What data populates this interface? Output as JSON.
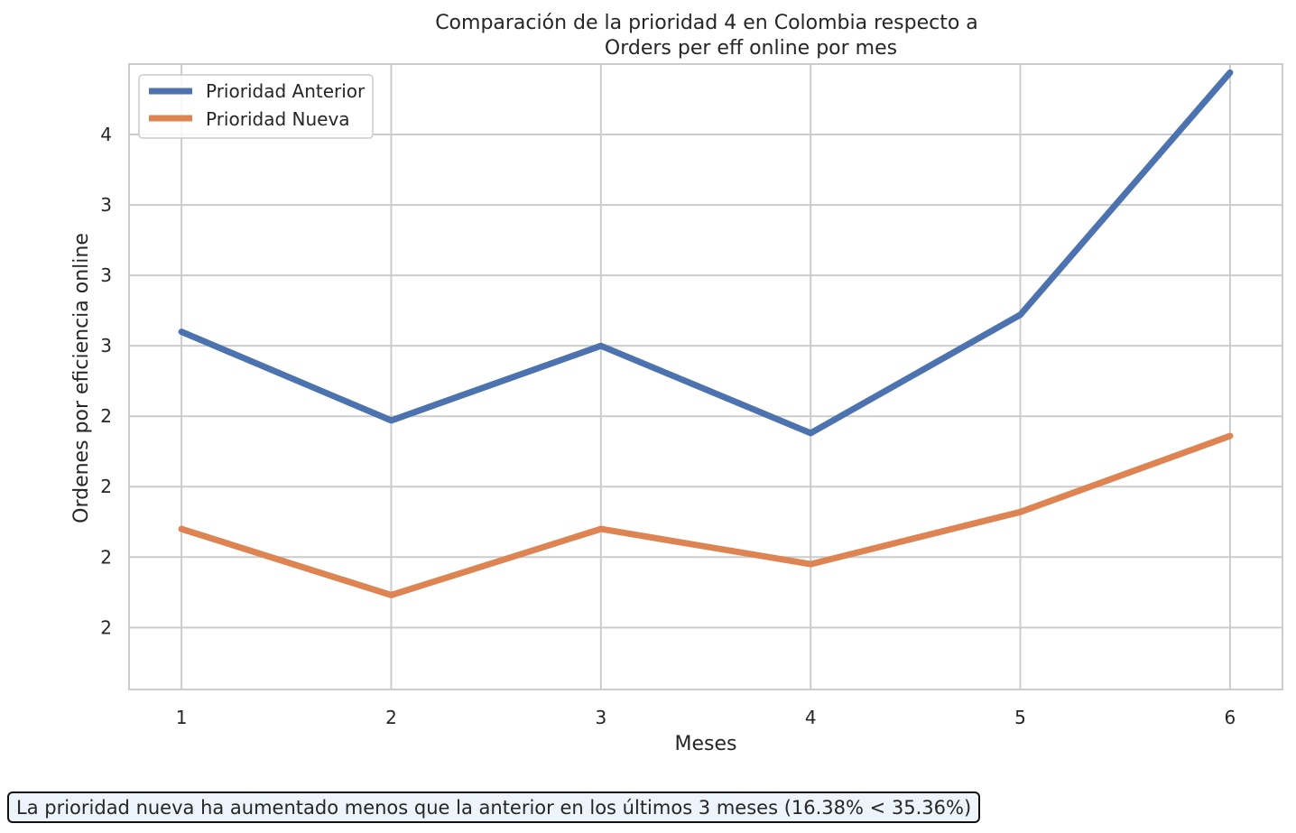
{
  "chart_data": {
    "type": "line",
    "title": [
      "Comparación de la prioridad 4 en Colombia respecto a",
      "Orders per eff online por mes"
    ],
    "xlabel": "Meses",
    "ylabel": "Ordenes por eficiencia online",
    "x": [
      1,
      2,
      3,
      4,
      5,
      6
    ],
    "x_ticks": [
      "1",
      "2",
      "3",
      "4",
      "5",
      "6"
    ],
    "xlim": [
      0.75,
      6.25
    ],
    "ylim": [
      1.53,
      3.75
    ],
    "y_tick_values": [
      1.75,
      2.0,
      2.25,
      2.5,
      2.75,
      3.0,
      3.25,
      3.5
    ],
    "y_tick_labels": [
      "2",
      "2",
      "2",
      "2",
      "3",
      "3",
      "3",
      "4"
    ],
    "grid": true,
    "legend_position": "top-left",
    "series": [
      {
        "name": "Prioridad Anterior",
        "color": "#4c72b0",
        "values": [
          2.8,
          2.485,
          2.75,
          2.44,
          2.86,
          3.72
        ]
      },
      {
        "name": "Prioridad Nueva",
        "color": "#dd8452",
        "values": [
          2.1,
          1.865,
          2.1,
          1.975,
          2.16,
          2.43
        ]
      }
    ],
    "annotation": "La prioridad nueva ha aumentado menos que la anterior en los últimos 3 meses (16.38% < 35.36%)"
  }
}
